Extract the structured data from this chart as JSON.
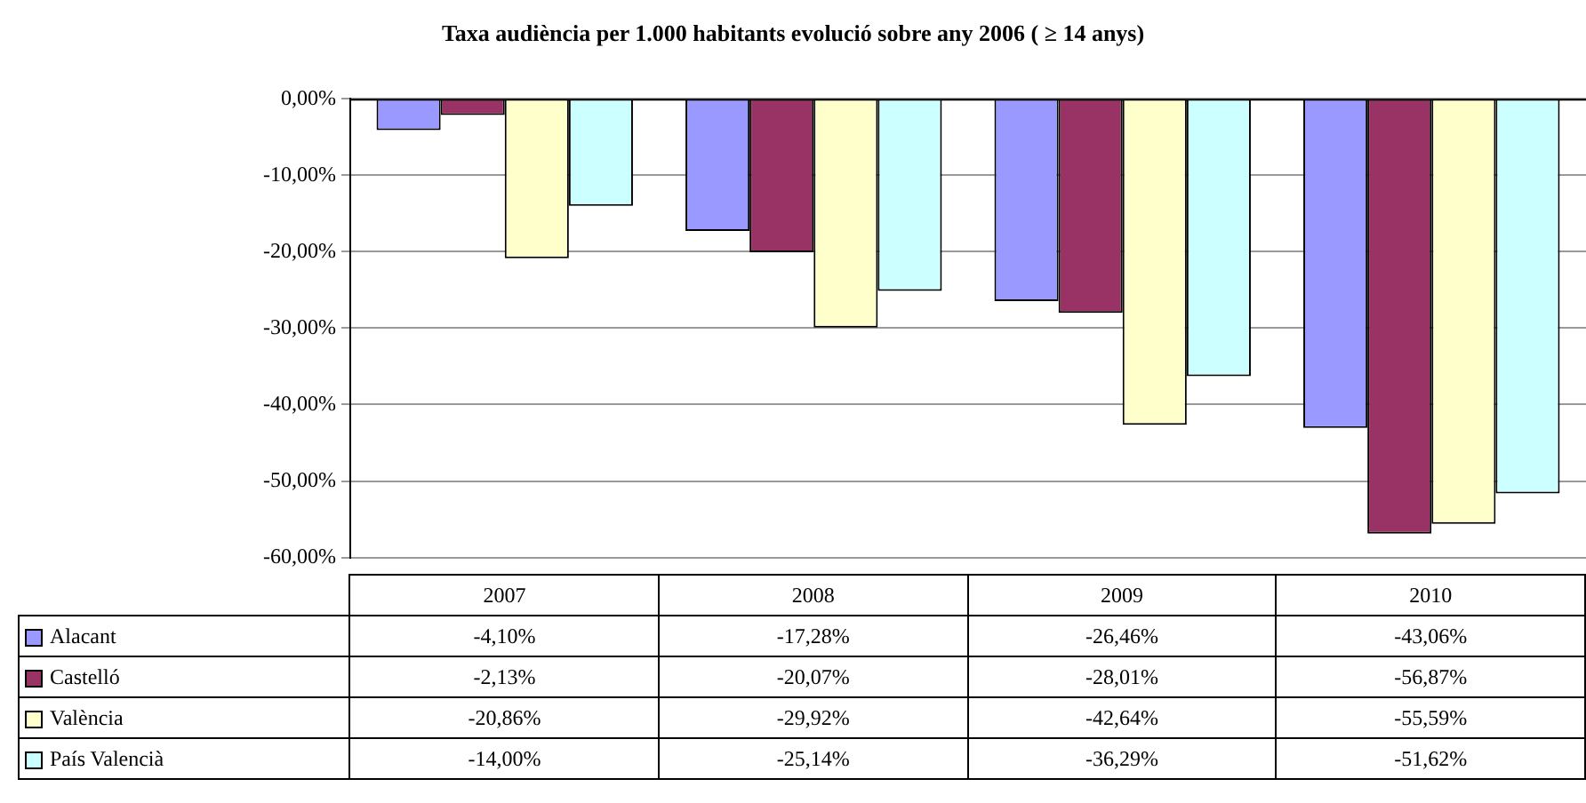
{
  "chart_data": {
    "type": "bar",
    "title": "Taxa audiència per 1.000 habitants evolució sobre any 2006 ( ≥ 14 anys)",
    "categories": [
      "2007",
      "2008",
      "2009",
      "2010"
    ],
    "series": [
      {
        "name": "Alacant",
        "color": "#9999ff",
        "values": [
          -4.1,
          -17.28,
          -26.46,
          -43.06
        ],
        "value_labels": [
          "-4,10%",
          "-17,28%",
          "-26,46%",
          "-43,06%"
        ]
      },
      {
        "name": "Castelló",
        "color": "#993366",
        "values": [
          -2.13,
          -20.07,
          -28.01,
          -56.87
        ],
        "value_labels": [
          "-2,13%",
          "-20,07%",
          "-28,01%",
          "-56,87%"
        ]
      },
      {
        "name": "València",
        "color": "#ffffcc",
        "values": [
          -20.86,
          -29.92,
          -42.64,
          -55.59
        ],
        "value_labels": [
          "-20,86%",
          "-29,92%",
          "-42,64%",
          "-55,59%"
        ]
      },
      {
        "name": "País Valencià",
        "color": "#ccffff",
        "values": [
          -14.0,
          -25.14,
          -36.29,
          -51.62
        ],
        "value_labels": [
          "-14,00%",
          "-25,14%",
          "-36,29%",
          "-51,62%"
        ]
      }
    ],
    "ylim": [
      -60,
      0
    ],
    "yticks": [
      {
        "value": -60,
        "label": "-60,00%"
      },
      {
        "value": -50,
        "label": "-50,00%"
      },
      {
        "value": -40,
        "label": "-40,00%"
      },
      {
        "value": -30,
        "label": "-30,00%"
      },
      {
        "value": -20,
        "label": "-20,00%"
      },
      {
        "value": -10,
        "label": "-10,00%"
      },
      {
        "value": 0,
        "label": "0,00%"
      }
    ],
    "grid": "y",
    "legend": "bottom"
  }
}
